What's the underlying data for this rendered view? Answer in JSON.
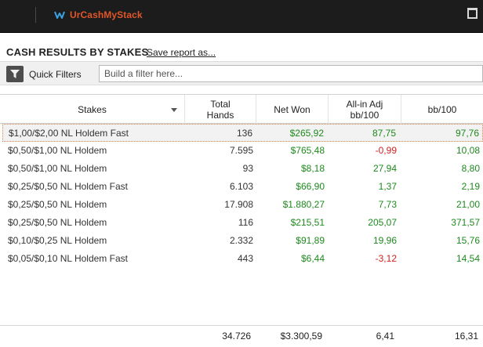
{
  "app": {
    "title": "UrCashMyStack"
  },
  "report": {
    "title": "CASH RESULTS BY STAKES",
    "save_label": "Save report as..."
  },
  "filters": {
    "label": "Quick Filters",
    "placeholder": "Build a filter here..."
  },
  "table": {
    "headers": {
      "stakes": "Stakes",
      "hands_line1": "Total",
      "hands_line2": "Hands",
      "net_won": "Net Won",
      "allin_line1": "All-in Adj",
      "allin_line2": "bb/100",
      "bb100": "bb/100"
    },
    "rows": [
      {
        "stakes": "$1,00/$2,00 NL Holdem Fast",
        "hands": "136",
        "net_won": "$265,92",
        "allin": "87,75",
        "allin_sign": "pos",
        "bb100": "97,76",
        "selected": true
      },
      {
        "stakes": "$0,50/$1,00 NL Holdem",
        "hands": "7.595",
        "net_won": "$765,48",
        "allin": "-0,99",
        "allin_sign": "neg",
        "bb100": "10,08",
        "selected": false
      },
      {
        "stakes": "$0,50/$1,00 NL Holdem",
        "hands": "93",
        "net_won": "$8,18",
        "allin": "27,94",
        "allin_sign": "pos",
        "bb100": "8,80",
        "selected": false
      },
      {
        "stakes": "$0,25/$0,50 NL Holdem Fast",
        "hands": "6.103",
        "net_won": "$66,90",
        "allin": "1,37",
        "allin_sign": "pos",
        "bb100": "2,19",
        "selected": false
      },
      {
        "stakes": "$0,25/$0,50 NL Holdem",
        "hands": "17.908",
        "net_won": "$1.880,27",
        "allin": "7,73",
        "allin_sign": "pos",
        "bb100": "21,00",
        "selected": false
      },
      {
        "stakes": "$0,25/$0,50 NL Holdem",
        "hands": "116",
        "net_won": "$215,51",
        "allin": "205,07",
        "allin_sign": "pos",
        "bb100": "371,57",
        "selected": false
      },
      {
        "stakes": "$0,10/$0,25 NL Holdem",
        "hands": "2.332",
        "net_won": "$91,89",
        "allin": "19,96",
        "allin_sign": "pos",
        "bb100": "15,76",
        "selected": false
      },
      {
        "stakes": "$0,05/$0,10 NL Holdem Fast",
        "hands": "443",
        "net_won": "$6,44",
        "allin": "-3,12",
        "allin_sign": "neg",
        "bb100": "14,54",
        "selected": false
      }
    ],
    "totals": {
      "hands": "34.726",
      "net_won": "$3.300,59",
      "allin": "6,41",
      "bb100": "16,31"
    }
  },
  "colors": {
    "positive": "#1e8a1e",
    "negative": "#d42020",
    "brand": "#e0562a"
  }
}
